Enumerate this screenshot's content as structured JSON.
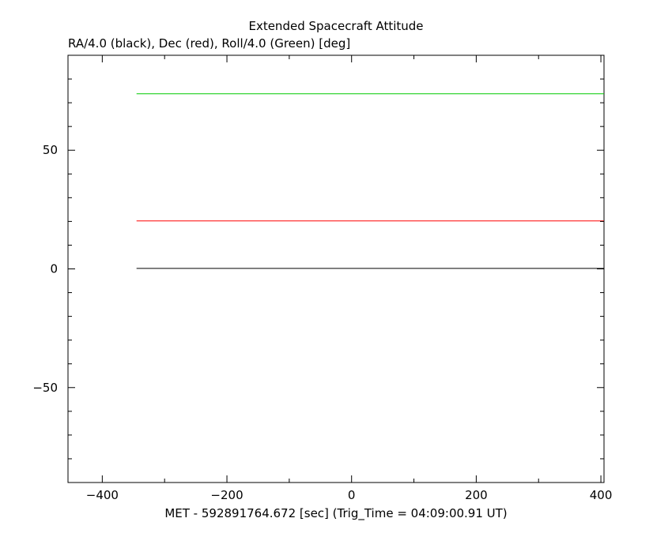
{
  "chart_data": {
    "type": "line",
    "title": "Extended Spacecraft Attitude",
    "subtitle": "RA/4.0 (black), Dec (red), Roll/4.0 (Green) [deg]",
    "xlabel": "MET - 592891764.672 [sec] (Trig_Time = 04:09:00.91 UT)",
    "ylabel": "",
    "xlim": [
      -455,
      405
    ],
    "ylim": [
      -90,
      90
    ],
    "x_ticks": [
      -400,
      -200,
      0,
      200,
      400
    ],
    "x_tick_labels": [
      "−400",
      "−200",
      "0",
      "200",
      "400"
    ],
    "y_ticks": [
      -50,
      0,
      50
    ],
    "y_tick_labels": [
      "−50",
      "0",
      "50"
    ],
    "grid": false,
    "series": [
      {
        "color": "#000000",
        "x": [
          -345,
          405
        ],
        "y": [
          0.2,
          0.2
        ]
      },
      {
        "color": "#ff0000",
        "x": [
          -345,
          405
        ],
        "y": [
          20.2,
          20.2
        ]
      },
      {
        "color": "#00cc00",
        "x": [
          -345,
          405
        ],
        "y": [
          73.8,
          73.8
        ]
      }
    ]
  }
}
